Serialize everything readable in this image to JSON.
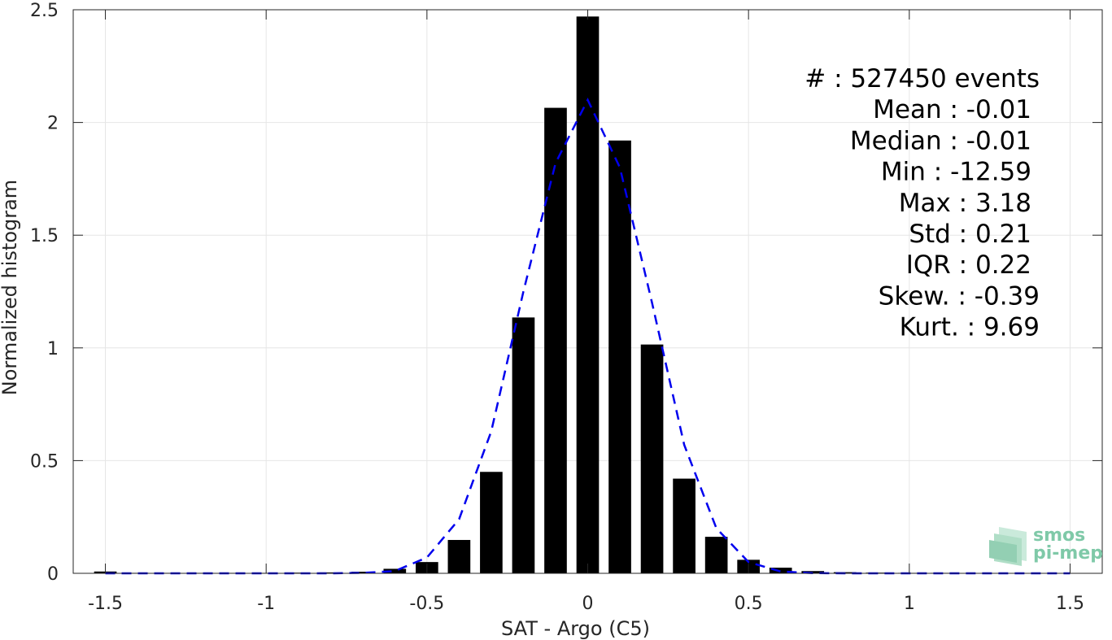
{
  "chart_data": {
    "type": "bar",
    "xlabel": "SAT - Argo (C5)",
    "ylabel": "Normalized histogram",
    "xlim": [
      -1.6,
      1.6
    ],
    "ylim": [
      0,
      2.5
    ],
    "grid": true,
    "xticks": [
      "-1.5",
      "-1",
      "-0.5",
      "0",
      "0.5",
      "1",
      "1.5"
    ],
    "xtick_values": [
      -1.5,
      -1,
      -0.5,
      0,
      0.5,
      1,
      1.5
    ],
    "yticks": [
      "0",
      "0.5",
      "1",
      "1.5",
      "2",
      "2.5"
    ],
    "ytick_values": [
      0,
      0.5,
      1,
      1.5,
      2,
      2.5
    ],
    "bin_width": 0.1,
    "bars": {
      "x": [
        -1.5,
        -1.4,
        -1.3,
        -1.2,
        -1.1,
        -1.0,
        -0.9,
        -0.8,
        -0.7,
        -0.6,
        -0.5,
        -0.4,
        -0.3,
        -0.2,
        -0.1,
        0.0,
        0.1,
        0.2,
        0.3,
        0.4,
        0.5,
        0.6,
        0.7,
        0.8,
        0.9,
        1.0,
        1.1,
        1.2,
        1.3,
        1.4,
        1.5
      ],
      "values": [
        0.008,
        0.002,
        0.002,
        0.002,
        0.002,
        0.002,
        0.003,
        0.004,
        0.007,
        0.02,
        0.05,
        0.148,
        0.45,
        1.135,
        2.065,
        2.47,
        1.92,
        1.015,
        0.42,
        0.162,
        0.06,
        0.025,
        0.01,
        0.005,
        0.003,
        0.002,
        0.002,
        0.001,
        0.001,
        0.001,
        0.001
      ]
    },
    "fit_curve": {
      "style": "dashed",
      "color": "#0000ee",
      "x": [
        -1.5,
        -1.4,
        -1.3,
        -1.2,
        -1.1,
        -1.0,
        -0.9,
        -0.8,
        -0.7,
        -0.6,
        -0.5,
        -0.4,
        -0.3,
        -0.2,
        -0.1,
        0.0,
        0.1,
        0.2,
        0.3,
        0.4,
        0.5,
        0.6,
        0.7,
        0.8,
        0.9,
        1.0,
        1.1,
        1.2,
        1.3,
        1.4,
        1.5
      ],
      "values": [
        0,
        0,
        0,
        0,
        0,
        0,
        0,
        0,
        0.002,
        0.01,
        0.07,
        0.24,
        0.63,
        1.25,
        1.82,
        2.1,
        1.8,
        1.2,
        0.57,
        0.2,
        0.05,
        0.008,
        0.001,
        0,
        0,
        0,
        0,
        0,
        0,
        0,
        0
      ]
    },
    "stats": [
      "#  : 527450 events",
      "Mean : -0.01",
      "Median : -0.01",
      "Min : -12.59",
      "Max : 3.18",
      "Std : 0.21",
      "IQR : 0.22",
      "Skew. : -0.39",
      "Kurt. : 9.69"
    ],
    "colors": {
      "bars": "#000000",
      "grid": "#e6e6e6",
      "axis": "#262626",
      "fit": "#0000ee"
    }
  },
  "logo": {
    "line1": "smos",
    "line2": "pi-mep"
  }
}
